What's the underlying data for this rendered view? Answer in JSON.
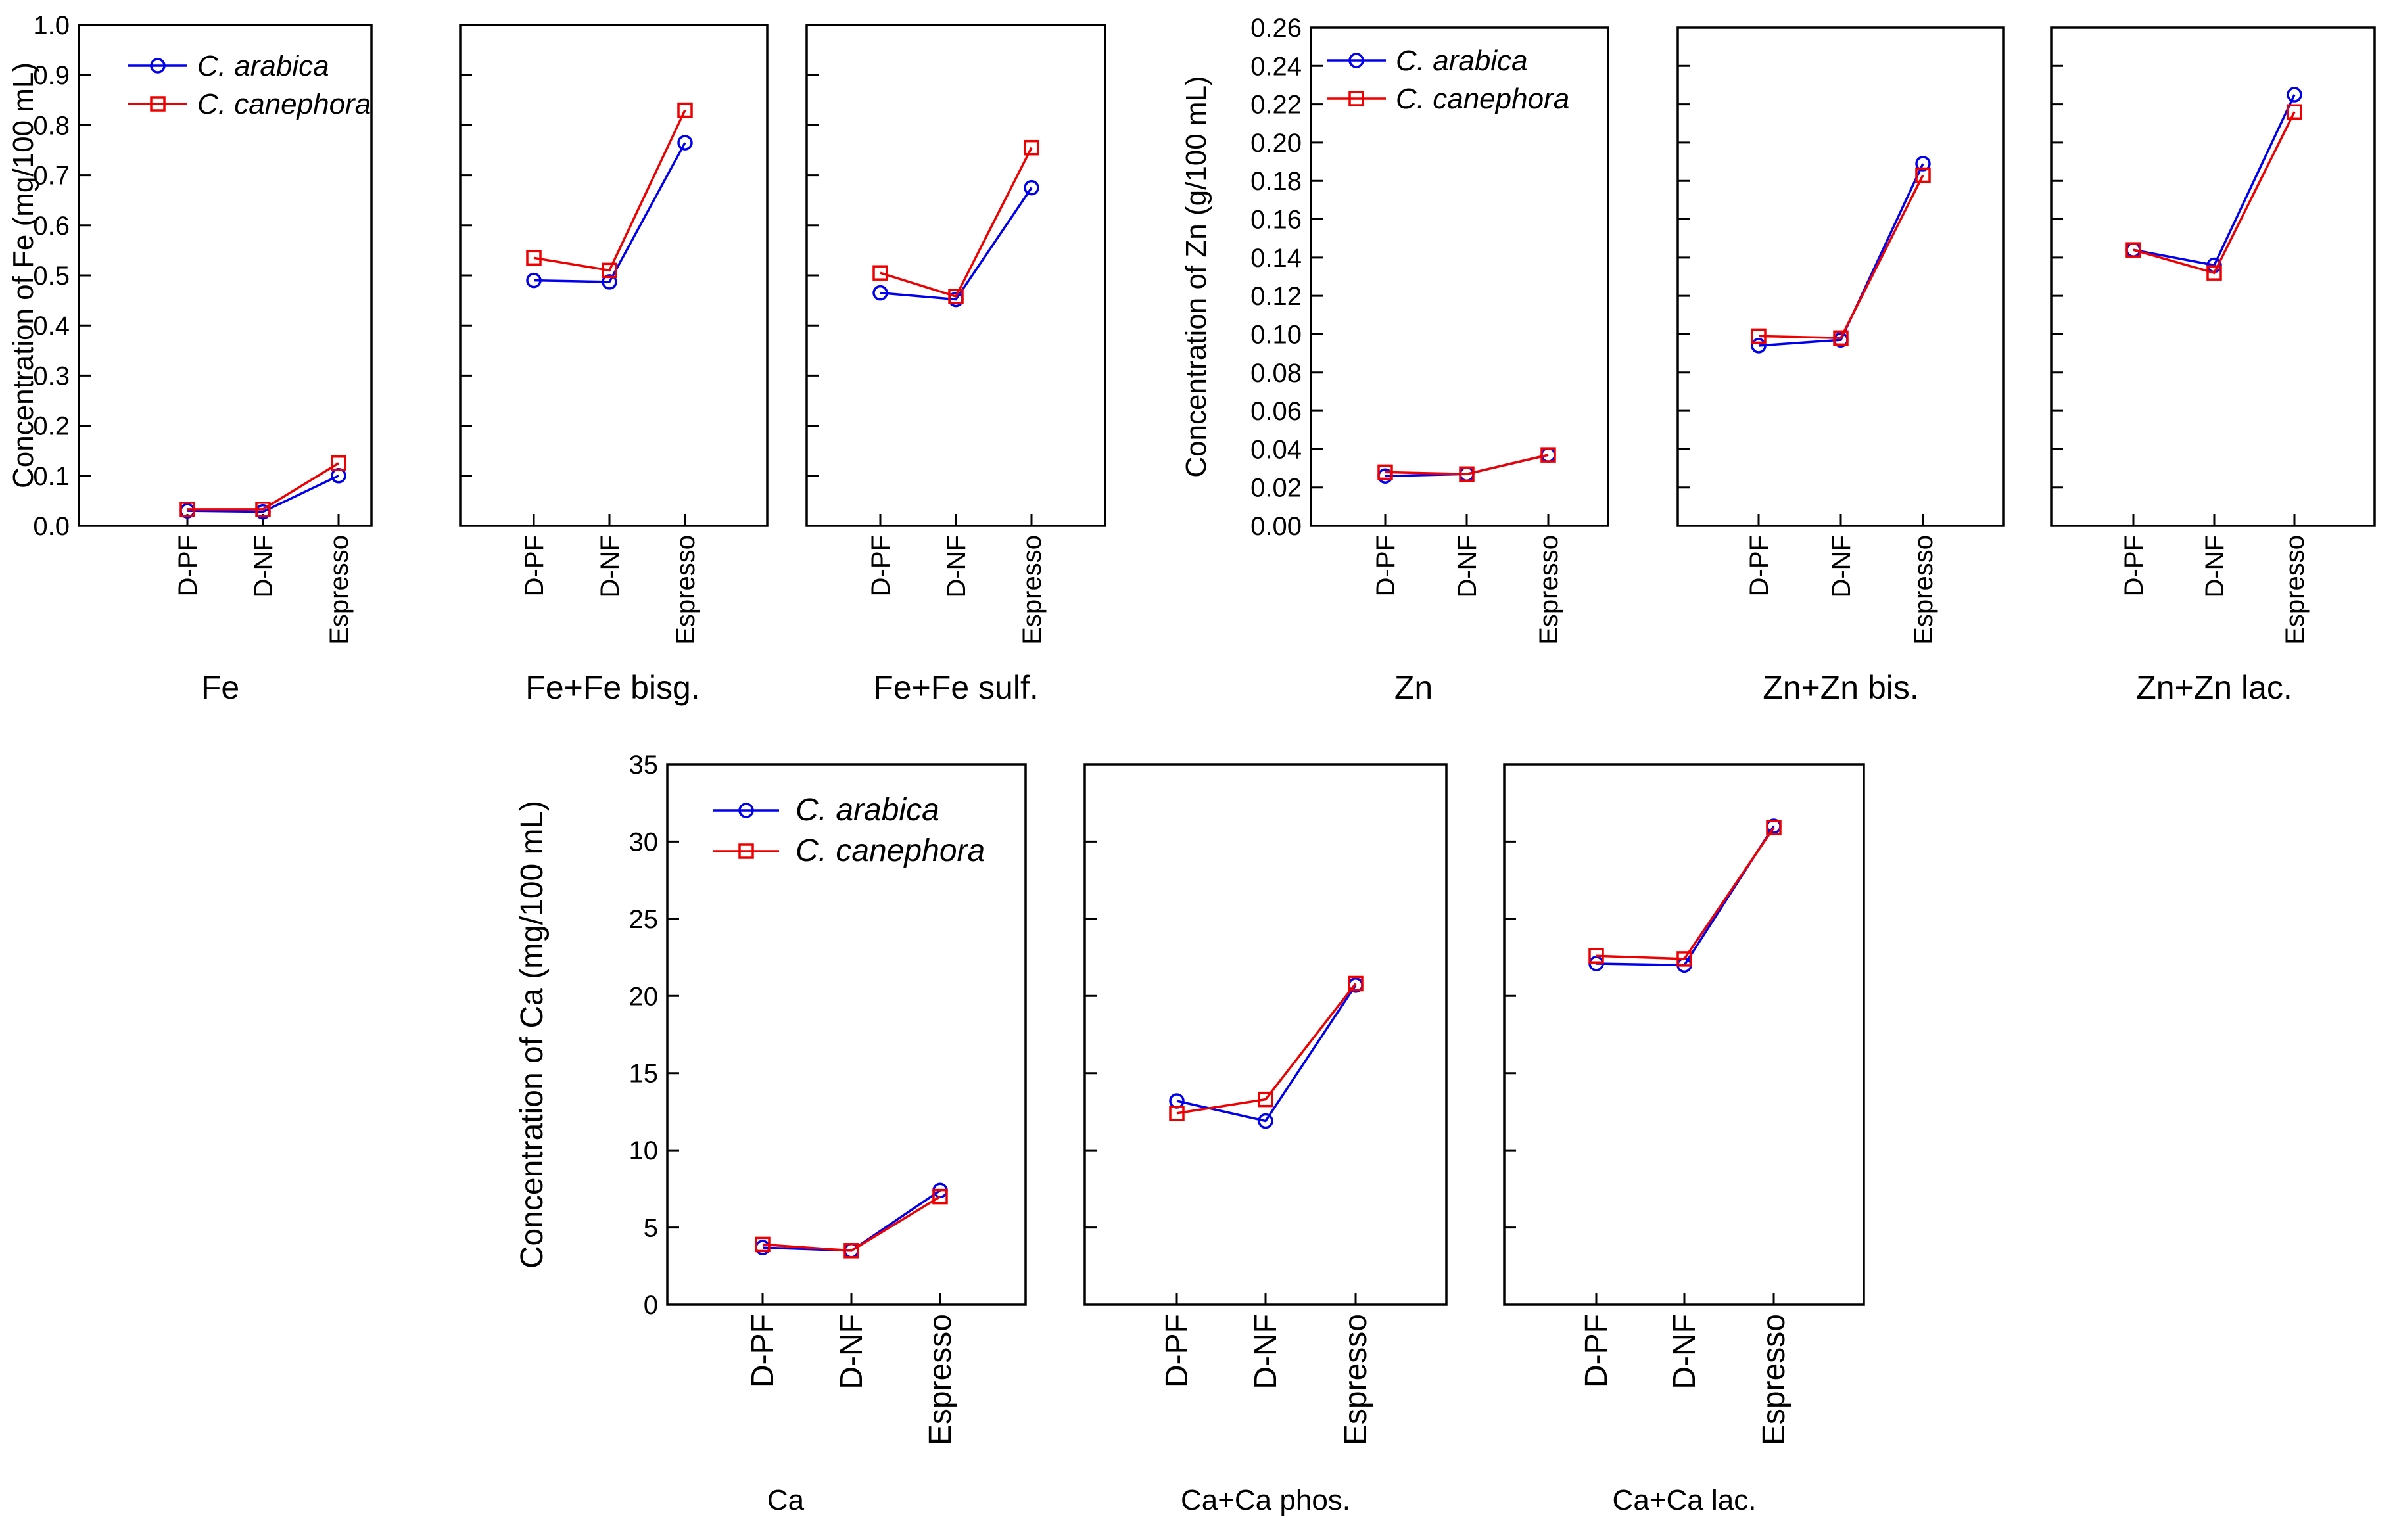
{
  "colors": {
    "arabica": "#0000ee",
    "canephora": "#ee0000"
  },
  "legend_labels": {
    "arabica": "C. arabica",
    "canephora": "C. canephora"
  },
  "chart_data": [
    {
      "type": "line",
      "group": "Fe",
      "title": "Fe",
      "ylabel": "Concentration of Fe (mg/100 mL)",
      "ylim": [
        0,
        1.0
      ],
      "yticks": [
        "0.0",
        "0.1",
        "0.2",
        "0.3",
        "0.4",
        "0.5",
        "0.6",
        "0.7",
        "0.8",
        "0.9",
        "1.0"
      ],
      "categories": [
        "D-PF",
        "D-NF",
        "Espresso"
      ],
      "series": [
        {
          "name": "C. arabica",
          "values": [
            0.03,
            0.028,
            0.1
          ]
        },
        {
          "name": "C. canephora",
          "values": [
            0.033,
            0.033,
            0.125
          ]
        }
      ]
    },
    {
      "type": "line",
      "group": "Fe",
      "title": "Fe+Fe bisg.",
      "ylim": [
        0,
        1.0
      ],
      "categories": [
        "D-PF",
        "D-NF",
        "Espresso"
      ],
      "series": [
        {
          "name": "C. arabica",
          "values": [
            0.49,
            0.487,
            0.765
          ]
        },
        {
          "name": "C. canephora",
          "values": [
            0.535,
            0.51,
            0.83
          ]
        }
      ]
    },
    {
      "type": "line",
      "group": "Fe",
      "title": "Fe+Fe sulf.",
      "ylim": [
        0,
        1.0
      ],
      "categories": [
        "D-PF",
        "D-NF",
        "Espresso"
      ],
      "series": [
        {
          "name": "C. arabica",
          "values": [
            0.465,
            0.452,
            0.675
          ]
        },
        {
          "name": "C. canephora",
          "values": [
            0.505,
            0.458,
            0.755
          ]
        }
      ]
    },
    {
      "type": "line",
      "group": "Zn",
      "title": "Zn",
      "ylabel": "Concentration of Zn (g/100 mL)",
      "ylim": [
        0,
        0.26
      ],
      "yticks": [
        "0.00",
        "0.02",
        "0.04",
        "0.06",
        "0.08",
        "0.10",
        "0.12",
        "0.14",
        "0.16",
        "0.18",
        "0.20",
        "0.22",
        "0.24",
        "0.26"
      ],
      "categories": [
        "D-PF",
        "D-NF",
        "Espresso"
      ],
      "series": [
        {
          "name": "C. arabica",
          "values": [
            0.026,
            0.027,
            0.037
          ]
        },
        {
          "name": "C. canephora",
          "values": [
            0.028,
            0.027,
            0.037
          ]
        }
      ]
    },
    {
      "type": "line",
      "group": "Zn",
      "title": "Zn+Zn bis.",
      "ylim": [
        0,
        0.26
      ],
      "categories": [
        "D-PF",
        "D-NF",
        "Espresso"
      ],
      "series": [
        {
          "name": "C. arabica",
          "values": [
            0.094,
            0.097,
            0.189
          ]
        },
        {
          "name": "C. canephora",
          "values": [
            0.099,
            0.098,
            0.183
          ]
        }
      ]
    },
    {
      "type": "line",
      "group": "Zn",
      "title": "Zn+Zn lac.",
      "ylim": [
        0,
        0.26
      ],
      "categories": [
        "D-PF",
        "D-NF",
        "Espresso"
      ],
      "series": [
        {
          "name": "C. arabica",
          "values": [
            0.144,
            0.136,
            0.225
          ]
        },
        {
          "name": "C. canephora",
          "values": [
            0.144,
            0.132,
            0.216
          ]
        }
      ]
    },
    {
      "type": "line",
      "group": "Ca",
      "title": "Ca",
      "ylabel": "Concentration of Ca (mg/100 mL)",
      "ylim": [
        0,
        35
      ],
      "yticks": [
        "0",
        "5",
        "10",
        "15",
        "20",
        "25",
        "30",
        "35"
      ],
      "categories": [
        "D-PF",
        "D-NF",
        "Espresso"
      ],
      "series": [
        {
          "name": "C. arabica",
          "values": [
            3.7,
            3.5,
            7.4
          ]
        },
        {
          "name": "C. canephora",
          "values": [
            3.9,
            3.5,
            7.0
          ]
        }
      ]
    },
    {
      "type": "line",
      "group": "Ca",
      "title": "Ca+Ca phos.",
      "ylim": [
        0,
        35
      ],
      "categories": [
        "D-PF",
        "D-NF",
        "Espresso"
      ],
      "series": [
        {
          "name": "C. arabica",
          "values": [
            13.2,
            11.9,
            20.7
          ]
        },
        {
          "name": "C. canephora",
          "values": [
            12.4,
            13.3,
            20.8
          ]
        }
      ]
    },
    {
      "type": "line",
      "group": "Ca",
      "title": "Ca+Ca lac.",
      "ylim": [
        0,
        35
      ],
      "categories": [
        "D-PF",
        "D-NF",
        "Espresso"
      ],
      "series": [
        {
          "name": "C. arabica",
          "values": [
            22.1,
            22.0,
            31.0
          ]
        },
        {
          "name": "C. canephora",
          "values": [
            22.6,
            22.4,
            30.9
          ]
        }
      ]
    }
  ]
}
